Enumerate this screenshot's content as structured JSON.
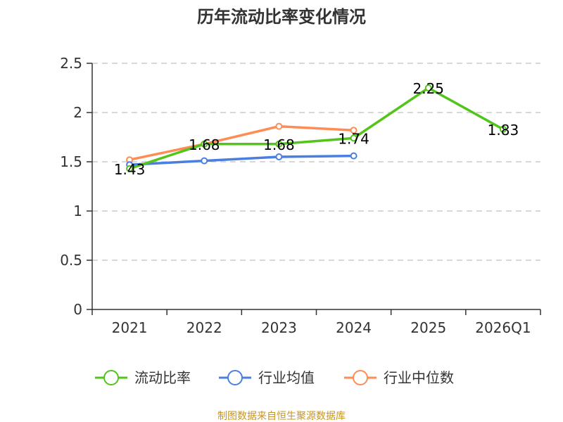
{
  "chart_data": {
    "type": "line",
    "title": "历年流动比率变化情况",
    "categories": [
      "2021",
      "2022",
      "2023",
      "2024",
      "2025",
      "2026Q1"
    ],
    "ylim": [
      0,
      2.5
    ],
    "yticks": [
      "0",
      "0.5",
      "1",
      "1.5",
      "2",
      "2.5"
    ],
    "grid": true,
    "legend_position": "bottom",
    "series": [
      {
        "name": "流动比率",
        "color": "#52c41a",
        "values": [
          1.43,
          1.68,
          1.68,
          1.74,
          2.25,
          1.83
        ],
        "labels": [
          "1.43",
          "1.68",
          "1.68",
          "1.74",
          "2.25",
          "1.83"
        ]
      },
      {
        "name": "行业均值",
        "color": "#4a7fe0",
        "values": [
          1.47,
          1.51,
          1.55,
          1.56,
          null,
          null
        ]
      },
      {
        "name": "行业中位数",
        "color": "#ff8c55",
        "values": [
          1.52,
          1.68,
          1.86,
          1.82,
          null,
          null
        ]
      }
    ]
  },
  "source": "制图数据来自恒生聚源数据库"
}
